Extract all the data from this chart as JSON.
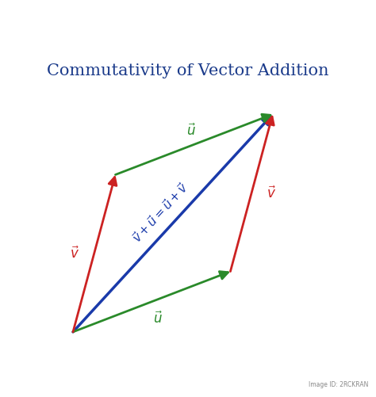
{
  "title": "Commutativity of Vector Addition",
  "title_color": "#1a3a8a",
  "title_fontsize": 15,
  "background_color": "#ffffff",
  "color_u": "#2a8a2a",
  "color_v": "#cc2222",
  "color_diag": "#1a3aaa",
  "label_u": "$\\vec{u}$",
  "label_v": "$\\vec{v}$",
  "equation": "$\\vec{v}+\\vec{u}=\\vec{u}+\\vec{v}$",
  "eq_color": "#1a3aaa",
  "eq_fontsize": 11,
  "lfs": 12,
  "O": [
    0.12,
    0.11
  ],
  "U": [
    0.52,
    0.2
  ],
  "V": [
    0.14,
    0.52
  ]
}
